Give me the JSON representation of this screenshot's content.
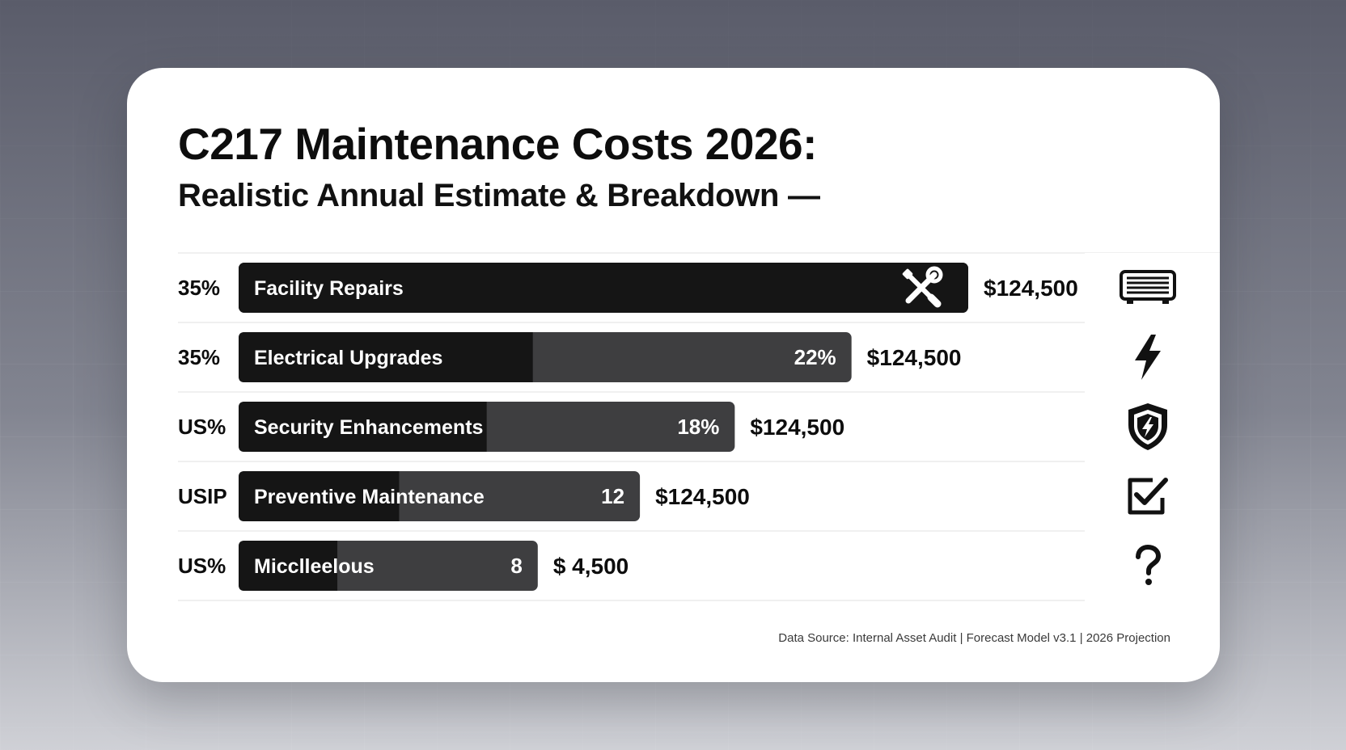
{
  "card": {
    "title": "C217 Maintenance Costs 2026:",
    "subtitle": "Realistic Annual Estimate & Breakdown —",
    "footer": "Data Source: Internal Asset Audit | Forecast Model v3.1 | 2026 Projection"
  },
  "colors": {
    "bar_primary": "#151515",
    "bar_secondary": "#3e3e40",
    "background": "#6b6e7c",
    "card": "#ffffff",
    "text": "#0d0d0d"
  },
  "chart_data": {
    "type": "bar",
    "orientation": "horizontal",
    "categories": [
      "Facility Repairs",
      "Electrical Upgrades",
      "Security Enhancements",
      "Preventive Maintenance",
      "Micclleelous"
    ],
    "row_labels": [
      "35%",
      "35%",
      "US%",
      "USIP",
      "US%"
    ],
    "bar_values": [
      100,
      84,
      68,
      55,
      41
    ],
    "dark_fill_fraction": [
      1.0,
      0.48,
      0.5,
      0.4,
      0.33
    ],
    "inner_labels": [
      "",
      "22%",
      "18%",
      "12",
      "8"
    ],
    "cost_labels": [
      "$124,500",
      "$124,500",
      "$124,500",
      "$124,500",
      "$ 4,500"
    ],
    "icons": [
      "heater-icon",
      "lightning-bolt-icon",
      "shield-icon",
      "checkbox-icon",
      "question-mark-icon"
    ],
    "bar_icon": "wrench-screwdriver-icon",
    "xlim": [
      0,
      100
    ],
    "grid": true
  }
}
